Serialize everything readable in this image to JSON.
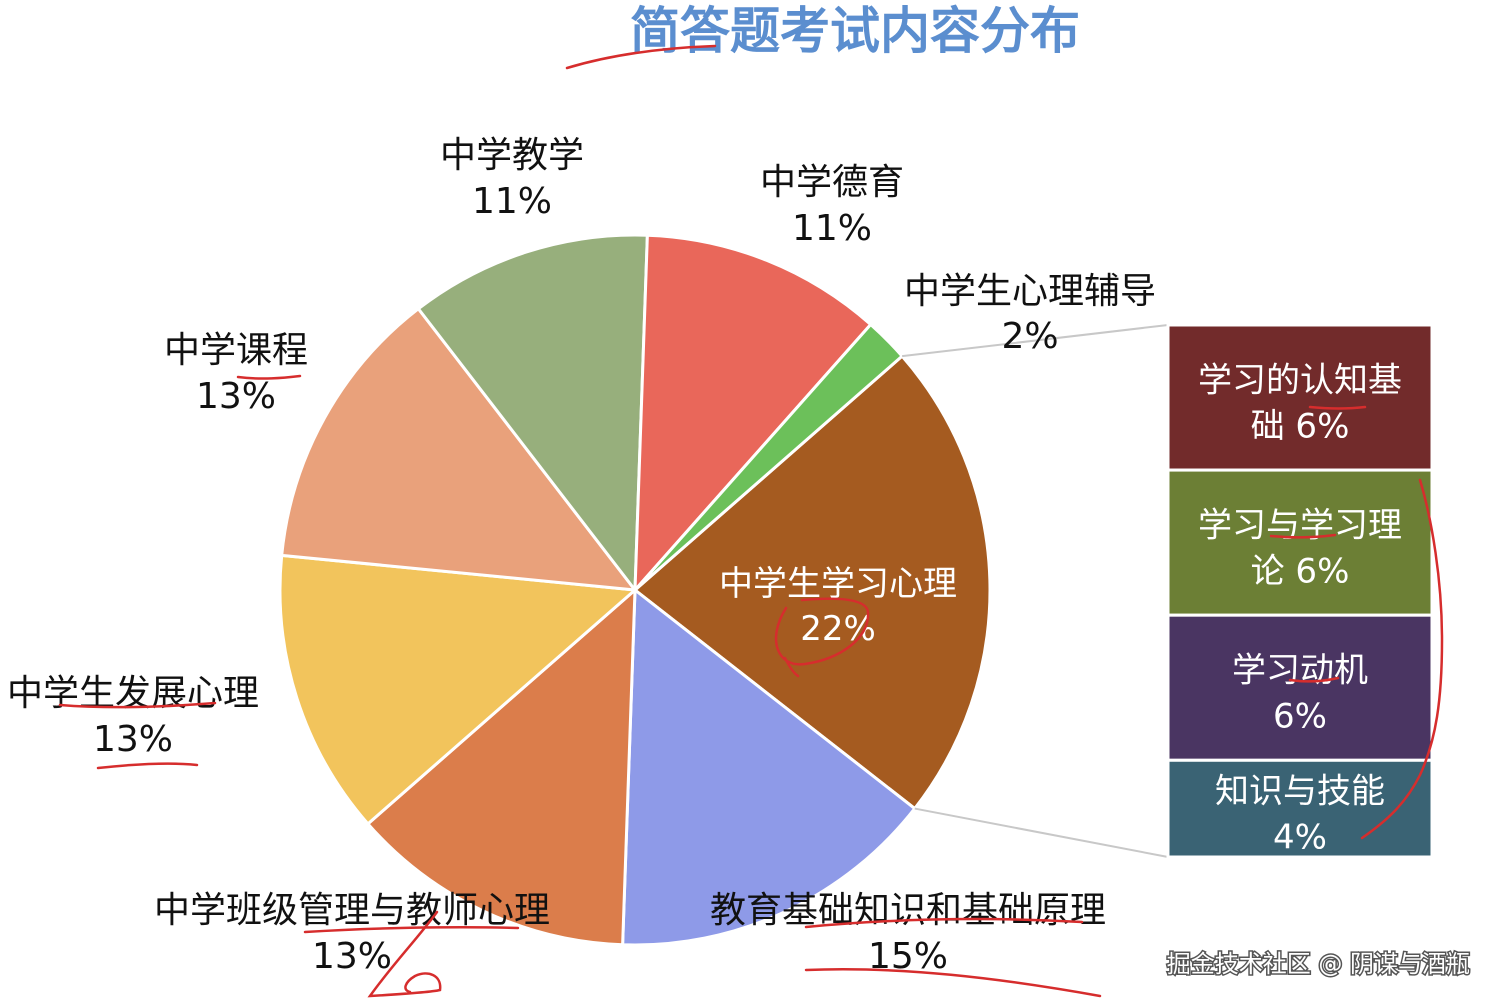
{
  "chart_data": {
    "type": "pie",
    "title": "简答题考试内容分布",
    "slices": [
      {
        "label": "中学生学习心理",
        "value": 22,
        "value_label": "22%",
        "color": "#A55B20"
      },
      {
        "label": "教育基础知识和基础原理",
        "value": 15,
        "value_label": "15%",
        "color": "#8E9AE8"
      },
      {
        "label": "中学班级管理与教师心理",
        "value": 13,
        "value_label": "13%",
        "color": "#DB7D4B"
      },
      {
        "label": "中学生发展心理",
        "value": 13,
        "value_label": "13%",
        "color": "#F2C45C"
      },
      {
        "label": "中学课程",
        "value": 13,
        "value_label": "13%",
        "color": "#E9A17B"
      },
      {
        "label": "中学教学",
        "value": 11,
        "value_label": "11%",
        "color": "#97AF7C"
      },
      {
        "label": "中学德育",
        "value": 11,
        "value_label": "11%",
        "color": "#E9675A"
      },
      {
        "label": "中学生心理辅导",
        "value": 2,
        "value_label": "2%",
        "color": "#6CC05A"
      }
    ],
    "breakdown_of": "中学生学习心理",
    "breakdown": [
      {
        "label_line1": "学习的认知基",
        "label_line2": "础  6%",
        "value": 6,
        "color": "#722B2B"
      },
      {
        "label_line1": "学习与学习理",
        "label_line2": "论  6%",
        "value": 6,
        "color": "#6C7F35"
      },
      {
        "label_line1": "学习动机",
        "label_line2": "6%",
        "value": 6,
        "color": "#4A3562"
      },
      {
        "label_line1": "知识与技能",
        "label_line2": "4%",
        "value": 4,
        "color": "#3A6374"
      }
    ],
    "title_color": "#5B8ECF",
    "annotation_color": "#D62D2D"
  },
  "watermark": "掘金技术社区 @ 阴谋与酒瓶"
}
